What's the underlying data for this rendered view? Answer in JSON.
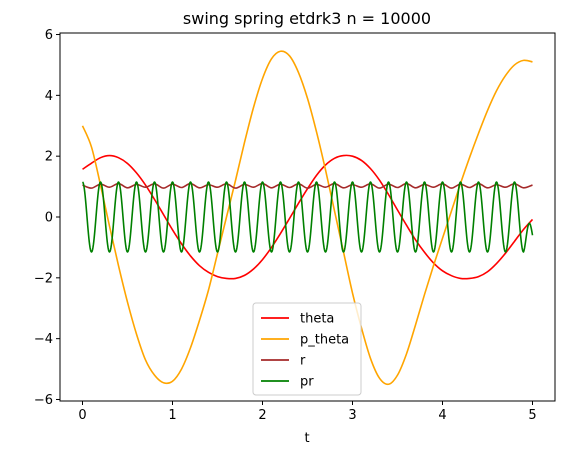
{
  "chart_data": {
    "type": "line",
    "title": "swing spring etdrk3 n = 10000",
    "xlabel": "t",
    "ylabel": "",
    "xlim": [
      -0.25,
      5.25
    ],
    "ylim": [
      -6.05,
      6.05
    ],
    "xticks": [
      0,
      1,
      2,
      3,
      4,
      5
    ],
    "yticks": [
      -6,
      -4,
      -2,
      0,
      2,
      4,
      6
    ],
    "x_tick_labels": [
      "0",
      "1",
      "2",
      "3",
      "4",
      "5"
    ],
    "y_tick_labels": [
      "−6",
      "−4",
      "−2",
      "0",
      "2",
      "4",
      "6"
    ],
    "grid": false,
    "legend": "lower-center",
    "series": [
      {
        "name": "theta",
        "color": "#ff0000",
        "x": [
          0,
          0.1,
          0.2,
          0.3,
          0.4,
          0.5,
          0.6,
          0.7,
          0.8,
          0.9,
          1.0,
          1.1,
          1.2,
          1.3,
          1.4,
          1.5,
          1.6,
          1.7,
          1.8,
          1.9,
          2.0,
          2.1,
          2.2,
          2.3,
          2.4,
          2.5,
          2.6,
          2.7,
          2.8,
          2.9,
          3.0,
          3.1,
          3.2,
          3.3,
          3.4,
          3.5,
          3.6,
          3.7,
          3.8,
          3.9,
          4.0,
          4.1,
          4.2,
          4.3,
          4.4,
          4.5,
          4.6,
          4.7,
          4.8,
          4.9,
          5.0
        ],
        "values": [
          1.57,
          1.77,
          1.95,
          2.02,
          1.95,
          1.76,
          1.45,
          1.05,
          0.58,
          0.08,
          -0.42,
          -0.88,
          -1.28,
          -1.6,
          -1.82,
          -1.96,
          -2.02,
          -2.02,
          -1.92,
          -1.71,
          -1.4,
          -1.0,
          -0.54,
          -0.05,
          0.45,
          0.93,
          1.37,
          1.71,
          1.93,
          2.02,
          2.0,
          1.86,
          1.59,
          1.21,
          0.74,
          0.23,
          -0.27,
          -0.75,
          -1.16,
          -1.51,
          -1.77,
          -1.93,
          -2.02,
          -2.02,
          -1.96,
          -1.8,
          -1.53,
          -1.19,
          -0.8,
          -0.41,
          -0.08
        ]
      },
      {
        "name": "p_theta",
        "color": "#ffa500",
        "x": [
          0,
          0.1,
          0.2,
          0.3,
          0.4,
          0.5,
          0.6,
          0.7,
          0.8,
          0.9,
          1.0,
          1.1,
          1.2,
          1.3,
          1.4,
          1.5,
          1.6,
          1.7,
          1.8,
          1.9,
          2.0,
          2.1,
          2.2,
          2.3,
          2.4,
          2.5,
          2.6,
          2.7,
          2.8,
          2.9,
          3.0,
          3.1,
          3.2,
          3.3,
          3.4,
          3.5,
          3.6,
          3.7,
          3.8,
          3.9,
          4.0,
          4.1,
          4.2,
          4.3,
          4.4,
          4.5,
          4.6,
          4.7,
          4.8,
          4.9,
          5.0
        ],
        "values": [
          3.0,
          2.3,
          1.05,
          -0.3,
          -1.6,
          -2.8,
          -3.85,
          -4.7,
          -5.2,
          -5.45,
          -5.4,
          -5.0,
          -4.3,
          -3.4,
          -2.4,
          -1.2,
          0.0,
          1.2,
          2.45,
          3.6,
          4.55,
          5.2,
          5.45,
          5.3,
          4.75,
          3.9,
          2.8,
          1.55,
          0.2,
          -1.15,
          -2.5,
          -3.65,
          -4.65,
          -5.3,
          -5.5,
          -5.2,
          -4.5,
          -3.55,
          -2.55,
          -1.6,
          -0.7,
          0.2,
          1.1,
          1.95,
          2.75,
          3.5,
          4.15,
          4.65,
          5.0,
          5.15,
          5.1
        ]
      },
      {
        "name": "r",
        "color": "#a52a2a",
        "x": [
          0,
          0.1,
          0.2,
          0.3,
          0.4,
          0.5,
          0.6,
          0.7,
          0.8,
          0.9,
          1.0,
          1.1,
          1.2,
          1.3,
          1.4,
          1.5,
          1.6,
          1.7,
          1.8,
          1.9,
          2.0,
          2.1,
          2.2,
          2.3,
          2.4,
          2.5,
          2.6,
          2.7,
          2.8,
          2.9,
          3.0,
          3.1,
          3.2,
          3.3,
          3.4,
          3.5,
          3.6,
          3.7,
          3.8,
          3.9,
          4.0,
          4.1,
          4.2,
          4.3,
          4.4,
          4.5,
          4.6,
          4.7,
          4.8,
          4.9,
          5.0
        ],
        "values": [
          1.05,
          0.95,
          1.08,
          0.98,
          1.1,
          0.96,
          1.07,
          0.98,
          1.09,
          0.95,
          1.08,
          0.97,
          1.1,
          0.96,
          1.06,
          0.98,
          1.09,
          0.95,
          1.07,
          0.98,
          1.1,
          0.96,
          1.08,
          0.97,
          1.09,
          0.95,
          1.07,
          0.98,
          1.1,
          0.96,
          1.06,
          0.98,
          1.09,
          0.95,
          1.08,
          0.97,
          1.1,
          0.96,
          1.07,
          0.98,
          1.09,
          0.95,
          1.08,
          0.97,
          1.1,
          0.96,
          1.06,
          0.98,
          1.09,
          0.96,
          1.05
        ]
      },
      {
        "name": "pr",
        "color": "#008000",
        "t_end": 5.0,
        "oscillation": {
          "mean": 0.0,
          "amplitude": 1.15,
          "peaks_t": [
            0.0,
            0.2,
            0.4,
            0.6,
            0.8,
            1.0,
            1.2,
            1.4,
            1.6,
            1.8,
            2.0,
            2.2,
            2.4,
            2.6,
            2.8,
            3.0,
            3.2,
            3.4,
            3.6,
            3.8,
            4.0,
            4.2,
            4.4,
            4.6,
            4.8
          ],
          "end_value": -0.6
        }
      }
    ]
  }
}
